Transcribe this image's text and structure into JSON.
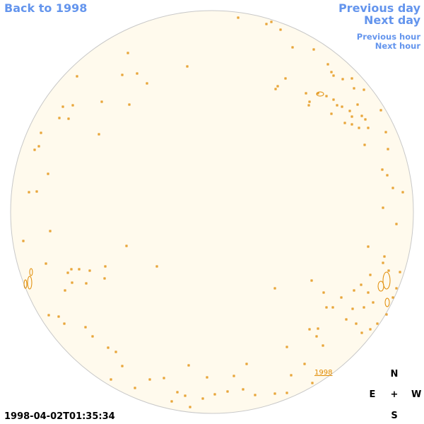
{
  "navigation": {
    "back_label": "Back to 1998",
    "previous_day": "Previous day",
    "next_day": "Next day",
    "previous_hour": "Previous hour",
    "next_hour": "Next hour"
  },
  "compass": {
    "north": "N",
    "east": "E",
    "center": "+",
    "west": "W",
    "south": "S"
  },
  "timestamp": "1998-04-02T01:35:34",
  "year_marker": "1998",
  "colors": {
    "link": "#6495ed",
    "disk_fill": "#fffaed",
    "disk_outline": "#c8c8c8",
    "contour": "#e08a00"
  }
}
